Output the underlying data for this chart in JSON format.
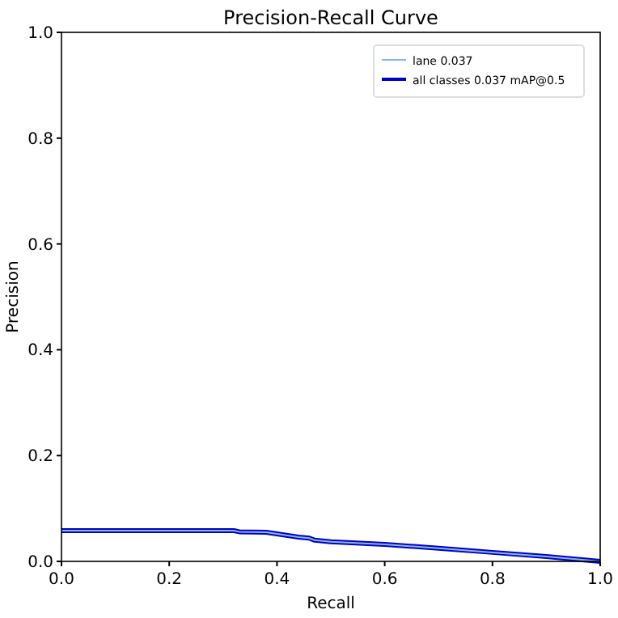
{
  "chart_data": {
    "type": "line",
    "title": "Precision-Recall Curve",
    "xlabel": "Recall",
    "ylabel": "Precision",
    "xlim": [
      0,
      1
    ],
    "ylim": [
      0,
      1
    ],
    "xticks": [
      {
        "value": 0,
        "label": "0.0"
      },
      {
        "value": 0.2,
        "label": "0.2"
      },
      {
        "value": 0.4,
        "label": "0.4"
      },
      {
        "value": 0.6,
        "label": "0.6"
      },
      {
        "value": 0.8,
        "label": "0.8"
      },
      {
        "value": 1,
        "label": "1.0"
      }
    ],
    "yticks": [
      {
        "value": 0,
        "label": "0.0"
      },
      {
        "value": 0.2,
        "label": "0.2"
      },
      {
        "value": 0.4,
        "label": "0.4"
      },
      {
        "value": 0.6,
        "label": "0.6"
      },
      {
        "value": 0.8,
        "label": "0.8"
      },
      {
        "value": 1,
        "label": "1.0"
      }
    ],
    "x": [
      0,
      0.32,
      0.33,
      0.38,
      0.4,
      0.42,
      0.44,
      0.46,
      0.47,
      0.5,
      0.6,
      0.7,
      0.8,
      0.9,
      1.0
    ],
    "legend": "top right",
    "grid": false,
    "series": [
      {
        "name": "all classes 0.037 mAP@0.5",
        "color": "#0000c8",
        "values": [
          0.058,
          0.058,
          0.056,
          0.055,
          0.052,
          0.049,
          0.046,
          0.044,
          0.04,
          0.037,
          0.032,
          0.025,
          0.017,
          0.009,
          0.0
        ]
      },
      {
        "name": "lane 0.037",
        "color": "#8ab8d8",
        "values": [
          0.058,
          0.058,
          0.056,
          0.055,
          0.052,
          0.049,
          0.046,
          0.044,
          0.04,
          0.037,
          0.032,
          0.025,
          0.017,
          0.009,
          0.0
        ]
      }
    ]
  }
}
